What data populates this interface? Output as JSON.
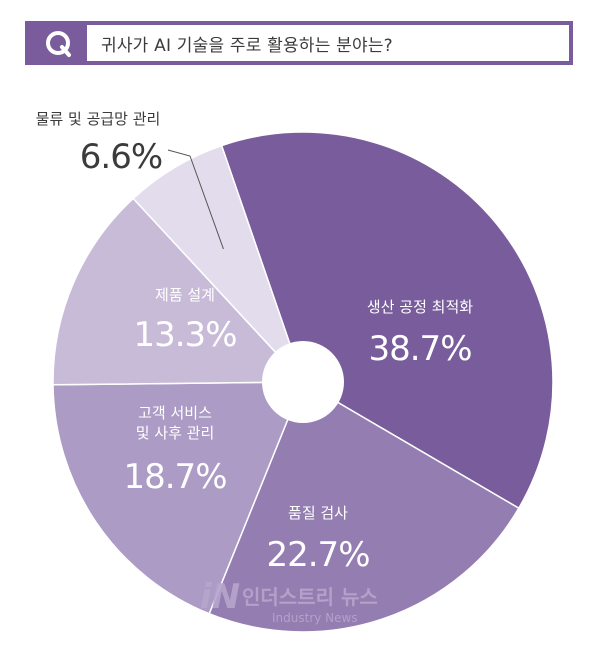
{
  "header": {
    "question_mark": "Q",
    "question": "귀사가 AI 기술을 주로 활용하는 분야는?"
  },
  "chart_data": {
    "type": "pie",
    "title": "귀사가 AI 기술을 주로 활용하는 분야는?",
    "slices": [
      {
        "label": "생산 공정 최적화",
        "value": 38.7,
        "value_label": "38.7%",
        "color": "#785c9b"
      },
      {
        "label": "품질 검사",
        "value": 22.7,
        "value_label": "22.7%",
        "color": "#937db1"
      },
      {
        "label": "고객 서비스 및 사후 관리",
        "label_lines": [
          "고객 서비스",
          "및 사후 관리"
        ],
        "value": 18.7,
        "value_label": "18.7%",
        "color": "#ab9bc5"
      },
      {
        "label": "제품 설계",
        "value": 13.3,
        "value_label": "13.3%",
        "color": "#c7bbd8"
      },
      {
        "label": "물류 및 공급망 관리",
        "value": 6.6,
        "value_label": "6.6%",
        "color": "#e3dcec"
      }
    ]
  },
  "watermark": {
    "logo_mark": "iN",
    "name_ko": "인더스트리 뉴스",
    "name_en": "Industry News"
  }
}
